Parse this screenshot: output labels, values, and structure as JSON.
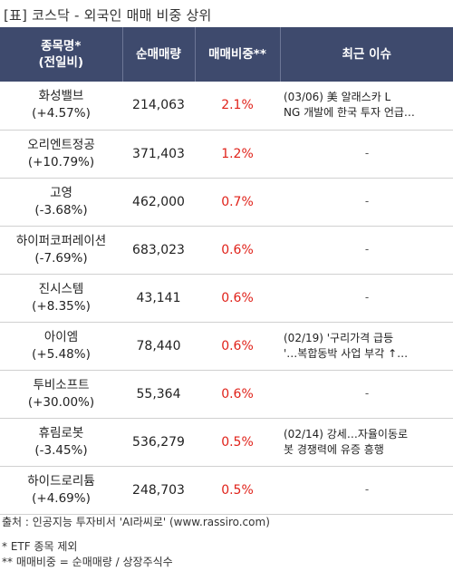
{
  "title": "[표] 코스닥 - 외국인 매매 비중 상위",
  "headers": {
    "name": "종목명*\n(전일비)",
    "volume": "순매매량",
    "ratio": "매매비중**",
    "issue": "최근 이슈"
  },
  "rows": [
    {
      "name": "화성밸브",
      "change": "(+4.57%)",
      "volume": "214,063",
      "ratio": "2.1%",
      "issue": "(03/06) 美 알래스카 L\nNG 개발에 한국 투자 언급…"
    },
    {
      "name": "오리엔트정공",
      "change": "(+10.79%)",
      "volume": "371,403",
      "ratio": "1.2%",
      "issue": "-"
    },
    {
      "name": "고영",
      "change": "(-3.68%)",
      "volume": "462,000",
      "ratio": "0.7%",
      "issue": "-"
    },
    {
      "name": "하이퍼코퍼레이션",
      "change": "(-7.69%)",
      "volume": "683,023",
      "ratio": "0.6%",
      "issue": "-"
    },
    {
      "name": "진시스템",
      "change": "(+8.35%)",
      "volume": "43,141",
      "ratio": "0.6%",
      "issue": "-"
    },
    {
      "name": "아이엠",
      "change": "(+5.48%)",
      "volume": "78,440",
      "ratio": "0.6%",
      "issue": "(02/19) '구리가격 급등\n'…복합동박 사업 부각 ↑…"
    },
    {
      "name": "투비소프트",
      "change": "(+30.00%)",
      "volume": "55,364",
      "ratio": "0.6%",
      "issue": "-"
    },
    {
      "name": "휴림로봇",
      "change": "(-3.45%)",
      "volume": "536,279",
      "ratio": "0.5%",
      "issue": "(02/14) 강세…자율이동로\n봇 경쟁력에 유증 흥행"
    },
    {
      "name": "하이드로리튬",
      "change": "(+4.69%)",
      "volume": "248,703",
      "ratio": "0.5%",
      "issue": "-"
    }
  ],
  "footer": {
    "source": "출처 : 인공지능 투자비서 'AI라씨로' (www.rassiro.com)",
    "note1": "* ETF 종목 제외",
    "note2": "** 매매비중 = 순매매량 / 상장주식수"
  }
}
